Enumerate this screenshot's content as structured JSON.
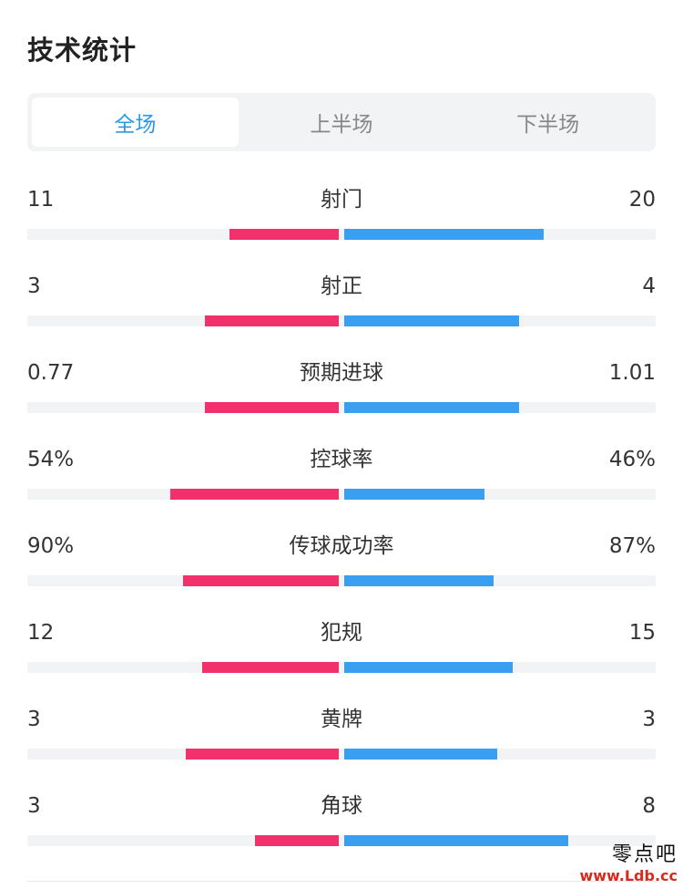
{
  "title": "技术统计",
  "tabs": [
    {
      "label": "全场",
      "active": true
    },
    {
      "label": "上半场",
      "active": false
    },
    {
      "label": "下半场",
      "active": false
    }
  ],
  "colors": {
    "home": "#f1306c",
    "away": "#3a9ff0",
    "active_tab": "#2a9ae8"
  },
  "stats": [
    {
      "label": "射门",
      "left": "11",
      "right": "20",
      "left_fraction": 0.35,
      "right_fraction": 0.64
    },
    {
      "label": "射正",
      "left": "3",
      "right": "4",
      "left_fraction": 0.43,
      "right_fraction": 0.56
    },
    {
      "label": "预期进球",
      "left": "0.77",
      "right": "1.01",
      "left_fraction": 0.43,
      "right_fraction": 0.56
    },
    {
      "label": "控球率",
      "left": "54%",
      "right": "46%",
      "left_fraction": 0.54,
      "right_fraction": 0.45
    },
    {
      "label": "传球成功率",
      "left": "90%",
      "right": "87%",
      "left_fraction": 0.5,
      "right_fraction": 0.48
    },
    {
      "label": "犯规",
      "left": "12",
      "right": "15",
      "left_fraction": 0.44,
      "right_fraction": 0.54
    },
    {
      "label": "黄牌",
      "left": "3",
      "right": "3",
      "left_fraction": 0.49,
      "right_fraction": 0.49
    },
    {
      "label": "角球",
      "left": "3",
      "right": "8",
      "left_fraction": 0.27,
      "right_fraction": 0.72
    }
  ],
  "watermark": {
    "logo": "零点吧",
    "url": "www.Ldb.cc"
  }
}
